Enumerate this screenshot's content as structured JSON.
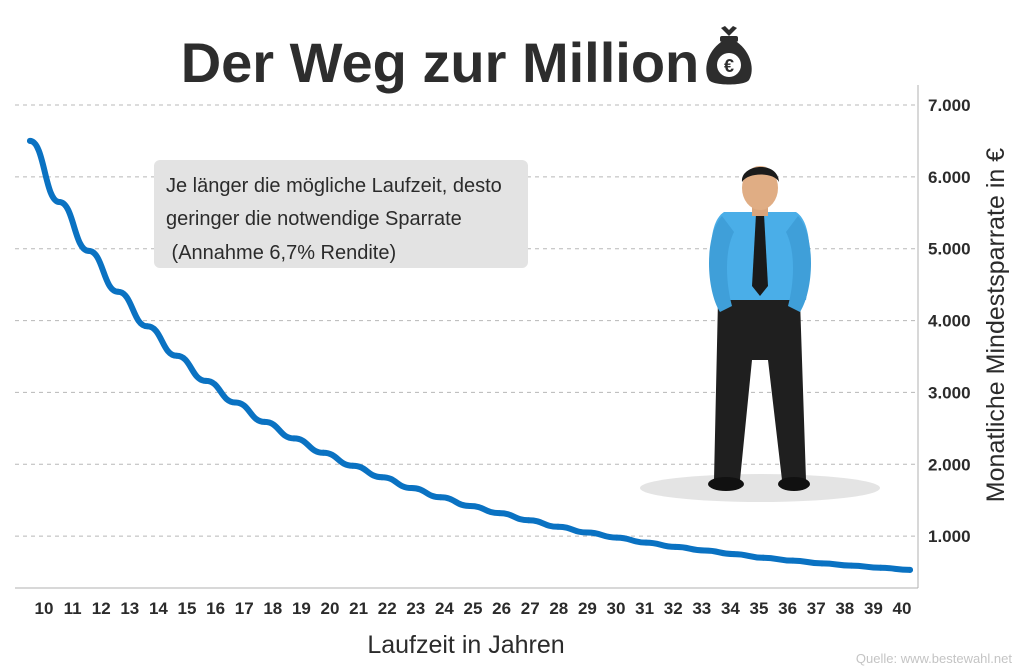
{
  "chart_data": {
    "type": "line",
    "title": "Der Weg zur Million",
    "xlabel": "Laufzeit in Jahren",
    "ylabel": "Monatliche Mindestsparrate in €",
    "x": [
      10,
      11,
      12,
      13,
      14,
      15,
      16,
      17,
      18,
      19,
      20,
      21,
      22,
      23,
      24,
      25,
      26,
      27,
      28,
      29,
      30,
      31,
      32,
      33,
      34,
      35,
      36,
      37,
      38,
      39,
      40
    ],
    "series": [
      {
        "values": [
          6500,
          5650,
          4970,
          4400,
          3920,
          3510,
          3160,
          2860,
          2590,
          2360,
          2160,
          1980,
          1820,
          1670,
          1540,
          1420,
          1320,
          1220,
          1130,
          1050,
          980,
          910,
          850,
          800,
          750,
          700,
          660,
          620,
          590,
          560,
          530
        ]
      }
    ],
    "yticks": [
      1000,
      2000,
      3000,
      4000,
      5000,
      6000,
      7000
    ],
    "ytick_labels": [
      "1.000",
      "2.000",
      "3.000",
      "4.000",
      "5.000",
      "6.000",
      "7.000"
    ],
    "ylim": [
      0,
      7000
    ],
    "xlim": [
      10,
      40
    ],
    "grid": true,
    "grid_style": "dashed horizontal",
    "y_axis_position": "right",
    "annotation": [
      "Je länger die mögliche Laufzeit, desto",
      "geringer die notwendige Sparrate",
      " (Annahme 6,7% Rendite)"
    ],
    "source": "Quelle: www.bestewahl.net",
    "colors": {
      "line": "#0a72c2",
      "grid": "#b8b8b8",
      "annotation_bg": "#e3e3e3"
    }
  },
  "illustration": {
    "title_icon": "money-bag-euro-icon",
    "title_icon_symbol": "€",
    "figure": "businessman-illustration"
  }
}
